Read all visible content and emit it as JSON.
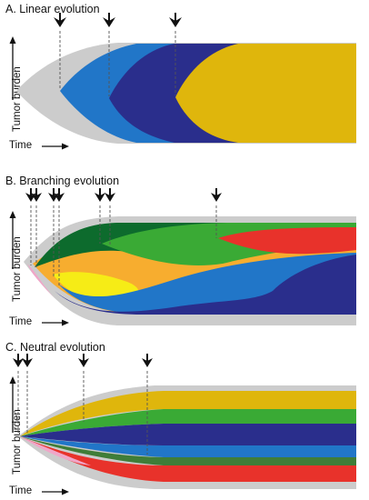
{
  "panels": [
    {
      "id": "linear",
      "title": "A. Linear evolution",
      "ylabel": "Tumor burden",
      "xlabel": "Time",
      "arrow_count": 3
    },
    {
      "id": "branching",
      "title": "B. Branching evolution",
      "ylabel": "Tumor burden",
      "xlabel": "Time",
      "arrow_count": 7
    },
    {
      "id": "neutral",
      "title": "C. Neutral evolution",
      "ylabel": "Tumor burden",
      "xlabel": "Time",
      "arrow_count": 4
    }
  ],
  "colors": {
    "normal": "#cccccc",
    "light_blue": "#2176c8",
    "navy": "#2a2e8c",
    "gold": "#dfb60c",
    "dark_green": "#0d6b2d",
    "green": "#3aaa35",
    "red": "#e8322b",
    "orange": "#f7ad2f",
    "yellow": "#f6ec16",
    "arrow": "#111111"
  }
}
